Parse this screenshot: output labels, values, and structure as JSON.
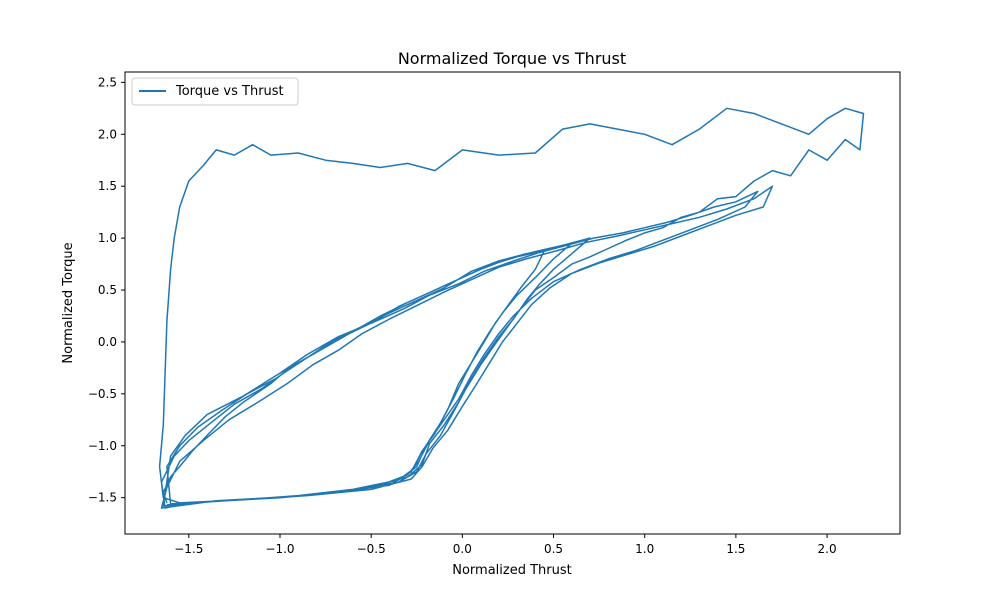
{
  "chart_data": {
    "type": "line",
    "title": "Normalized Torque vs Thrust",
    "xlabel": "Normalized Thrust",
    "ylabel": "Normalized Torque",
    "xlim": [
      -1.85,
      2.4
    ],
    "ylim": [
      -1.85,
      2.6
    ],
    "xticks": [
      -1.5,
      -1.0,
      -0.5,
      0.0,
      0.5,
      1.0,
      1.5,
      2.0
    ],
    "yticks": [
      -1.5,
      -1.0,
      -0.5,
      0.0,
      0.5,
      1.0,
      1.5,
      2.0,
      2.5
    ],
    "xtick_labels": [
      "−1.5",
      "−1.0",
      "−0.5",
      "0.0",
      "0.5",
      "1.0",
      "1.5",
      "2.0"
    ],
    "ytick_labels": [
      "−1.5",
      "−1.0",
      "−0.5",
      "0.0",
      "0.5",
      "1.0",
      "1.5",
      "2.0",
      "2.5"
    ],
    "grid": false,
    "legend_position": "upper-left",
    "series": [
      {
        "name": "Torque vs Thrust",
        "color": "#1f77b4",
        "points": [
          [
            -1.62,
            -1.55
          ],
          [
            -1.64,
            -1.45
          ],
          [
            -1.6,
            -1.3
          ],
          [
            -1.55,
            -1.2
          ],
          [
            -1.48,
            -1.05
          ],
          [
            -1.4,
            -0.9
          ],
          [
            -1.3,
            -0.72
          ],
          [
            -1.2,
            -0.58
          ],
          [
            -1.05,
            -0.4
          ],
          [
            -0.95,
            -0.25
          ],
          [
            -0.8,
            -0.1
          ],
          [
            -0.7,
            0.02
          ],
          [
            -0.55,
            0.15
          ],
          [
            -0.4,
            0.28
          ],
          [
            -0.25,
            0.4
          ],
          [
            -0.1,
            0.52
          ],
          [
            0.05,
            0.68
          ],
          [
            0.2,
            0.78
          ],
          [
            0.35,
            0.85
          ],
          [
            0.5,
            0.9
          ],
          [
            0.6,
            0.95
          ],
          [
            0.5,
            0.8
          ],
          [
            0.4,
            0.62
          ],
          [
            0.3,
            0.45
          ],
          [
            0.22,
            0.28
          ],
          [
            0.15,
            0.1
          ],
          [
            0.08,
            -0.1
          ],
          [
            0.02,
            -0.3
          ],
          [
            -0.05,
            -0.55
          ],
          [
            -0.12,
            -0.78
          ],
          [
            -0.2,
            -1.0
          ],
          [
            -0.25,
            -1.2
          ],
          [
            -0.35,
            -1.33
          ],
          [
            -0.6,
            -1.42
          ],
          [
            -0.9,
            -1.48
          ],
          [
            -1.2,
            -1.52
          ],
          [
            -1.5,
            -1.55
          ],
          [
            -1.63,
            -1.6
          ],
          [
            -1.65,
            -1.35
          ],
          [
            -1.58,
            -1.1
          ],
          [
            -1.5,
            -0.95
          ],
          [
            -1.38,
            -0.78
          ],
          [
            -1.25,
            -0.6
          ],
          [
            -1.1,
            -0.45
          ],
          [
            -0.98,
            -0.3
          ],
          [
            -0.85,
            -0.15
          ],
          [
            -0.72,
            0.0
          ],
          [
            -0.58,
            0.12
          ],
          [
            -0.45,
            0.25
          ],
          [
            -0.3,
            0.38
          ],
          [
            -0.15,
            0.5
          ],
          [
            0.0,
            0.62
          ],
          [
            0.15,
            0.74
          ],
          [
            0.3,
            0.82
          ],
          [
            0.45,
            0.88
          ],
          [
            0.4,
            0.7
          ],
          [
            0.32,
            0.52
          ],
          [
            0.25,
            0.35
          ],
          [
            0.18,
            0.18
          ],
          [
            0.12,
            0.0
          ],
          [
            0.05,
            -0.2
          ],
          [
            -0.02,
            -0.4
          ],
          [
            -0.08,
            -0.65
          ],
          [
            -0.15,
            -0.88
          ],
          [
            -0.22,
            -1.05
          ],
          [
            -0.28,
            -1.25
          ],
          [
            -0.4,
            -1.38
          ],
          [
            -0.7,
            -1.45
          ],
          [
            -1.0,
            -1.5
          ],
          [
            -1.3,
            -1.53
          ],
          [
            -1.6,
            -1.56
          ],
          [
            -1.62,
            -1.2
          ],
          [
            -1.55,
            -1.0
          ],
          [
            -1.45,
            -0.82
          ],
          [
            -1.32,
            -0.66
          ],
          [
            -1.18,
            -0.5
          ],
          [
            -1.02,
            -0.35
          ],
          [
            -0.9,
            -0.2
          ],
          [
            -0.75,
            -0.05
          ],
          [
            -0.62,
            0.08
          ],
          [
            -0.48,
            0.2
          ],
          [
            -0.35,
            0.34
          ],
          [
            -0.2,
            0.46
          ],
          [
            -0.05,
            0.58
          ],
          [
            0.1,
            0.7
          ],
          [
            0.25,
            0.8
          ],
          [
            0.4,
            0.87
          ],
          [
            0.55,
            0.93
          ],
          [
            0.7,
            1.0
          ],
          [
            0.6,
            0.85
          ],
          [
            0.5,
            0.7
          ],
          [
            0.42,
            0.55
          ],
          [
            0.35,
            0.4
          ],
          [
            0.28,
            0.22
          ],
          [
            0.2,
            0.05
          ],
          [
            0.12,
            -0.15
          ],
          [
            0.05,
            -0.35
          ],
          [
            -0.02,
            -0.58
          ],
          [
            -0.1,
            -0.8
          ],
          [
            -0.18,
            -0.98
          ],
          [
            -0.22,
            -1.18
          ],
          [
            -0.3,
            -1.3
          ],
          [
            -0.5,
            -1.4
          ],
          [
            -0.8,
            -1.47
          ],
          [
            -1.1,
            -1.51
          ],
          [
            -1.4,
            -1.54
          ],
          [
            -1.64,
            -1.58
          ],
          [
            -1.6,
            -1.1
          ],
          [
            -1.52,
            -0.9
          ],
          [
            -1.4,
            -0.7
          ],
          [
            -1.2,
            -0.52
          ],
          [
            -1.0,
            -0.3
          ],
          [
            -0.85,
            -0.12
          ],
          [
            -0.68,
            0.05
          ],
          [
            -0.5,
            0.18
          ],
          [
            -0.32,
            0.32
          ],
          [
            -0.18,
            0.45
          ],
          [
            -0.02,
            0.56
          ],
          [
            0.12,
            0.68
          ],
          [
            0.28,
            0.78
          ],
          [
            0.42,
            0.86
          ],
          [
            0.55,
            0.92
          ],
          [
            0.72,
            1.0
          ],
          [
            0.88,
            1.05
          ],
          [
            1.0,
            1.1
          ],
          [
            1.12,
            1.15
          ],
          [
            1.25,
            1.22
          ],
          [
            1.38,
            1.3
          ],
          [
            1.5,
            1.35
          ],
          [
            1.62,
            1.45
          ],
          [
            1.55,
            1.3
          ],
          [
            1.4,
            1.18
          ],
          [
            1.25,
            1.08
          ],
          [
            1.1,
            0.98
          ],
          [
            0.95,
            0.88
          ],
          [
            0.8,
            0.8
          ],
          [
            0.65,
            0.7
          ],
          [
            0.5,
            0.58
          ],
          [
            0.38,
            0.42
          ],
          [
            0.28,
            0.25
          ],
          [
            0.2,
            0.08
          ],
          [
            0.12,
            -0.12
          ],
          [
            0.05,
            -0.32
          ],
          [
            -0.02,
            -0.55
          ],
          [
            -0.1,
            -0.75
          ],
          [
            -0.18,
            -0.95
          ],
          [
            -0.24,
            -1.15
          ],
          [
            -0.3,
            -1.28
          ],
          [
            -0.45,
            -1.38
          ],
          [
            -0.75,
            -1.46
          ],
          [
            -1.05,
            -1.5
          ],
          [
            -1.35,
            -1.53
          ],
          [
            -1.65,
            -1.6
          ],
          [
            -1.62,
            -1.4
          ],
          [
            -1.55,
            -1.15
          ],
          [
            -1.42,
            -0.95
          ],
          [
            -1.28,
            -0.75
          ],
          [
            -1.12,
            -0.58
          ],
          [
            -0.96,
            -0.4
          ],
          [
            -0.82,
            -0.22
          ],
          [
            -0.68,
            -0.08
          ],
          [
            -0.55,
            0.08
          ],
          [
            -0.4,
            0.22
          ],
          [
            -0.25,
            0.35
          ],
          [
            -0.1,
            0.48
          ],
          [
            0.05,
            0.6
          ],
          [
            0.2,
            0.72
          ],
          [
            0.35,
            0.8
          ],
          [
            0.52,
            0.88
          ],
          [
            0.68,
            0.96
          ],
          [
            0.85,
            1.02
          ],
          [
            1.0,
            1.08
          ],
          [
            1.15,
            1.14
          ],
          [
            1.3,
            1.2
          ],
          [
            1.45,
            1.28
          ],
          [
            1.6,
            1.38
          ],
          [
            1.7,
            1.5
          ],
          [
            1.65,
            1.3
          ],
          [
            1.5,
            1.22
          ],
          [
            1.35,
            1.12
          ],
          [
            1.2,
            1.02
          ],
          [
            1.05,
            0.92
          ],
          [
            0.9,
            0.84
          ],
          [
            0.75,
            0.76
          ],
          [
            0.6,
            0.66
          ],
          [
            0.48,
            0.52
          ],
          [
            0.38,
            0.36
          ],
          [
            0.3,
            0.18
          ],
          [
            0.22,
            0.0
          ],
          [
            0.15,
            -0.2
          ],
          [
            0.08,
            -0.4
          ],
          [
            0.0,
            -0.62
          ],
          [
            -0.08,
            -0.85
          ],
          [
            -0.16,
            -1.02
          ],
          [
            -0.22,
            -1.2
          ],
          [
            -0.28,
            -1.32
          ],
          [
            -0.5,
            -1.42
          ],
          [
            -0.85,
            -1.48
          ],
          [
            -1.2,
            -1.52
          ],
          [
            -1.55,
            -1.55
          ],
          [
            -1.64,
            -1.5
          ],
          [
            -1.66,
            -1.2
          ],
          [
            -1.64,
            -0.8
          ],
          [
            -1.63,
            -0.3
          ],
          [
            -1.62,
            0.2
          ],
          [
            -1.6,
            0.7
          ],
          [
            -1.58,
            1.0
          ],
          [
            -1.55,
            1.3
          ],
          [
            -1.5,
            1.55
          ],
          [
            -1.42,
            1.7
          ],
          [
            -1.35,
            1.85
          ],
          [
            -1.25,
            1.8
          ],
          [
            -1.15,
            1.9
          ],
          [
            -1.05,
            1.8
          ],
          [
            -0.9,
            1.82
          ],
          [
            -0.75,
            1.75
          ],
          [
            -0.6,
            1.72
          ],
          [
            -0.45,
            1.68
          ],
          [
            -0.3,
            1.72
          ],
          [
            -0.15,
            1.65
          ],
          [
            0.0,
            1.85
          ],
          [
            0.2,
            1.8
          ],
          [
            0.4,
            1.82
          ],
          [
            0.55,
            2.05
          ],
          [
            0.7,
            2.1
          ],
          [
            0.85,
            2.05
          ],
          [
            1.0,
            2.0
          ],
          [
            1.15,
            1.9
          ],
          [
            1.3,
            2.05
          ],
          [
            1.45,
            2.25
          ],
          [
            1.6,
            2.2
          ],
          [
            1.75,
            2.1
          ],
          [
            1.9,
            2.0
          ],
          [
            2.0,
            2.15
          ],
          [
            2.1,
            2.25
          ],
          [
            2.2,
            2.2
          ],
          [
            2.18,
            1.85
          ],
          [
            2.1,
            1.95
          ],
          [
            2.0,
            1.75
          ],
          [
            1.9,
            1.85
          ],
          [
            1.8,
            1.6
          ],
          [
            1.7,
            1.65
          ],
          [
            1.6,
            1.55
          ],
          [
            1.5,
            1.4
          ],
          [
            1.4,
            1.38
          ],
          [
            1.3,
            1.25
          ],
          [
            1.2,
            1.2
          ],
          [
            1.1,
            1.1
          ],
          [
            1.0,
            1.05
          ],
          [
            0.9,
            0.98
          ],
          [
            0.8,
            0.9
          ],
          [
            0.7,
            0.82
          ],
          [
            0.6,
            0.75
          ],
          [
            0.5,
            0.62
          ],
          [
            0.4,
            0.5
          ],
          [
            0.32,
            0.32
          ],
          [
            0.25,
            0.15
          ],
          [
            0.18,
            -0.02
          ],
          [
            0.1,
            -0.22
          ],
          [
            0.02,
            -0.45
          ],
          [
            -0.05,
            -0.68
          ],
          [
            -0.12,
            -0.9
          ],
          [
            -0.2,
            -1.08
          ],
          [
            -0.25,
            -1.25
          ],
          [
            -0.35,
            -1.35
          ],
          [
            -0.6,
            -1.43
          ],
          [
            -0.95,
            -1.49
          ],
          [
            -1.3,
            -1.53
          ],
          [
            -1.62,
            -1.57
          ]
        ]
      }
    ]
  }
}
